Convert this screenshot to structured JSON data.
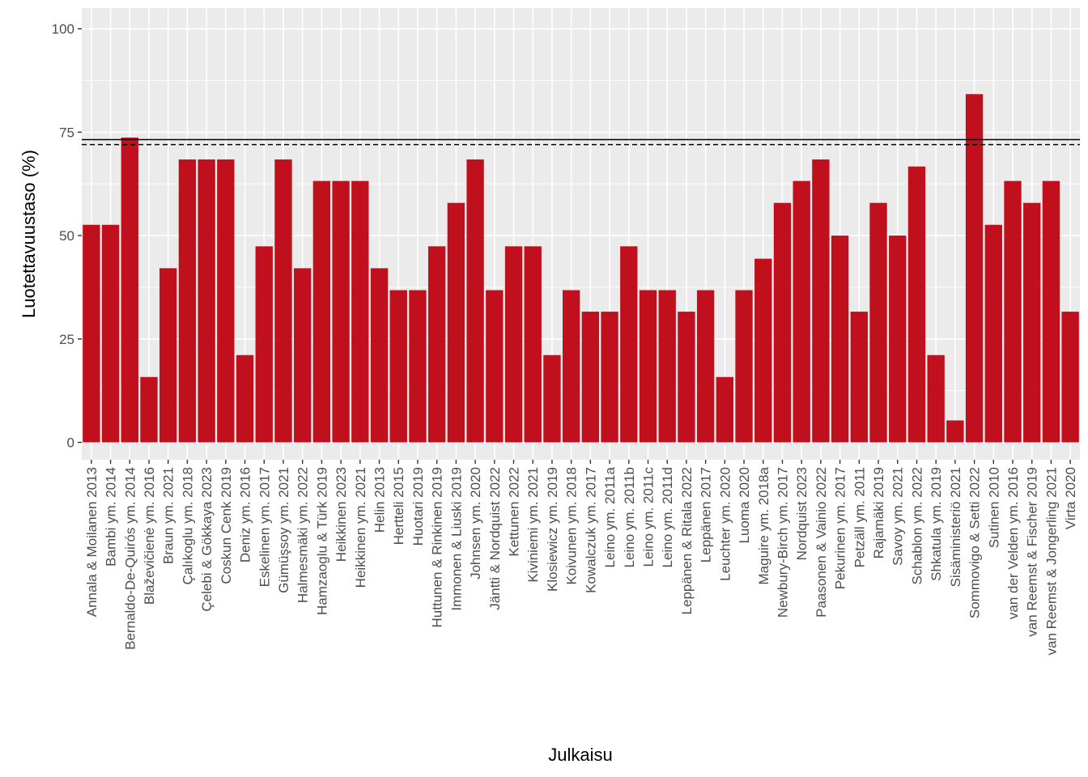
{
  "chart_data": {
    "type": "bar",
    "xlabel": "Julkaisu",
    "ylabel": "Luotettavuustaso (%)",
    "ylim": [
      -4.2,
      105
    ],
    "yticks": [
      0,
      25,
      50,
      75,
      100
    ],
    "grid": true,
    "background_color": "#EBEBEB",
    "bar_color": "#C0101E",
    "reference_lines": [
      {
        "style": "solid",
        "value": 73.2
      },
      {
        "style": "dashed",
        "value": 72.0
      }
    ],
    "categories": [
      "Annala & Moilanen 2013",
      "Bambi ym. 2014",
      "Bernaldo-De-Quirós ym. 2014",
      "Blaževičienė ym. 2016",
      "Braun ym. 2021",
      "Çalıkoglu ym. 2018",
      "Çelebi & Gökkaya 2023",
      "Coskun Cenk 2019",
      "Deniz ym. 2016",
      "Eskelinen ym. 2017",
      "Gümüşsoy ym. 2021",
      "Halmesmäki ym. 2022",
      "Hamzaoglu & Türk 2019",
      "Heikkinen 2023",
      "Heikkinen ym. 2021",
      "Helin 2013",
      "Hertteli 2015",
      "Huotari 2019",
      "Huttunen & Rinkinen 2019",
      "Immonen & Liuski 2019",
      "Johnsen ym. 2020",
      "Jäntti & Nordquist 2022",
      "Kettunen 2022",
      "Kiviniemi ym. 2021",
      "Klosiewicz ym. 2019",
      "Koivunen ym. 2018",
      "Kowalczuk ym. 2017",
      "Leino ym. 2011a",
      "Leino ym. 2011b",
      "Leino ym. 2011c",
      "Leino ym. 2011d",
      "Leppänen & Ritala 2022",
      "Leppänen 2017",
      "Leuchter ym. 2020",
      "Luoma 2020",
      "Maguire ym. 2018a",
      "Newbury-Birch ym. 2017",
      "Nordquist 2023",
      "Paasonen & Vainio 2022",
      "Pekurinen ym. 2017",
      "Petzäll ym. 2011",
      "Rajamäki 2019",
      "Savoy ym. 2021",
      "Schablon ym. 2022",
      "Shkatula ym. 2019",
      "Sisäministeriö 2021",
      "Sommovigo & Setti 2022",
      "Sutinen 2010",
      "van der Velden ym. 2016",
      "van Reemst & Fischer 2019",
      "van Reemst & Jongerling 2021",
      "Virta 2020"
    ],
    "values": [
      52.6,
      52.6,
      73.7,
      15.8,
      42.1,
      68.4,
      68.4,
      68.4,
      21.1,
      47.4,
      68.4,
      42.1,
      63.2,
      63.2,
      63.2,
      42.1,
      36.8,
      36.8,
      47.4,
      57.9,
      68.4,
      36.8,
      47.4,
      47.4,
      21.1,
      36.8,
      31.6,
      31.6,
      47.4,
      36.8,
      36.8,
      31.6,
      36.8,
      15.8,
      36.8,
      44.4,
      57.9,
      63.2,
      68.4,
      50.0,
      31.6,
      57.9,
      50.0,
      66.7,
      21.1,
      5.3,
      84.2,
      52.6,
      63.2,
      57.9,
      63.2,
      31.6
    ]
  }
}
